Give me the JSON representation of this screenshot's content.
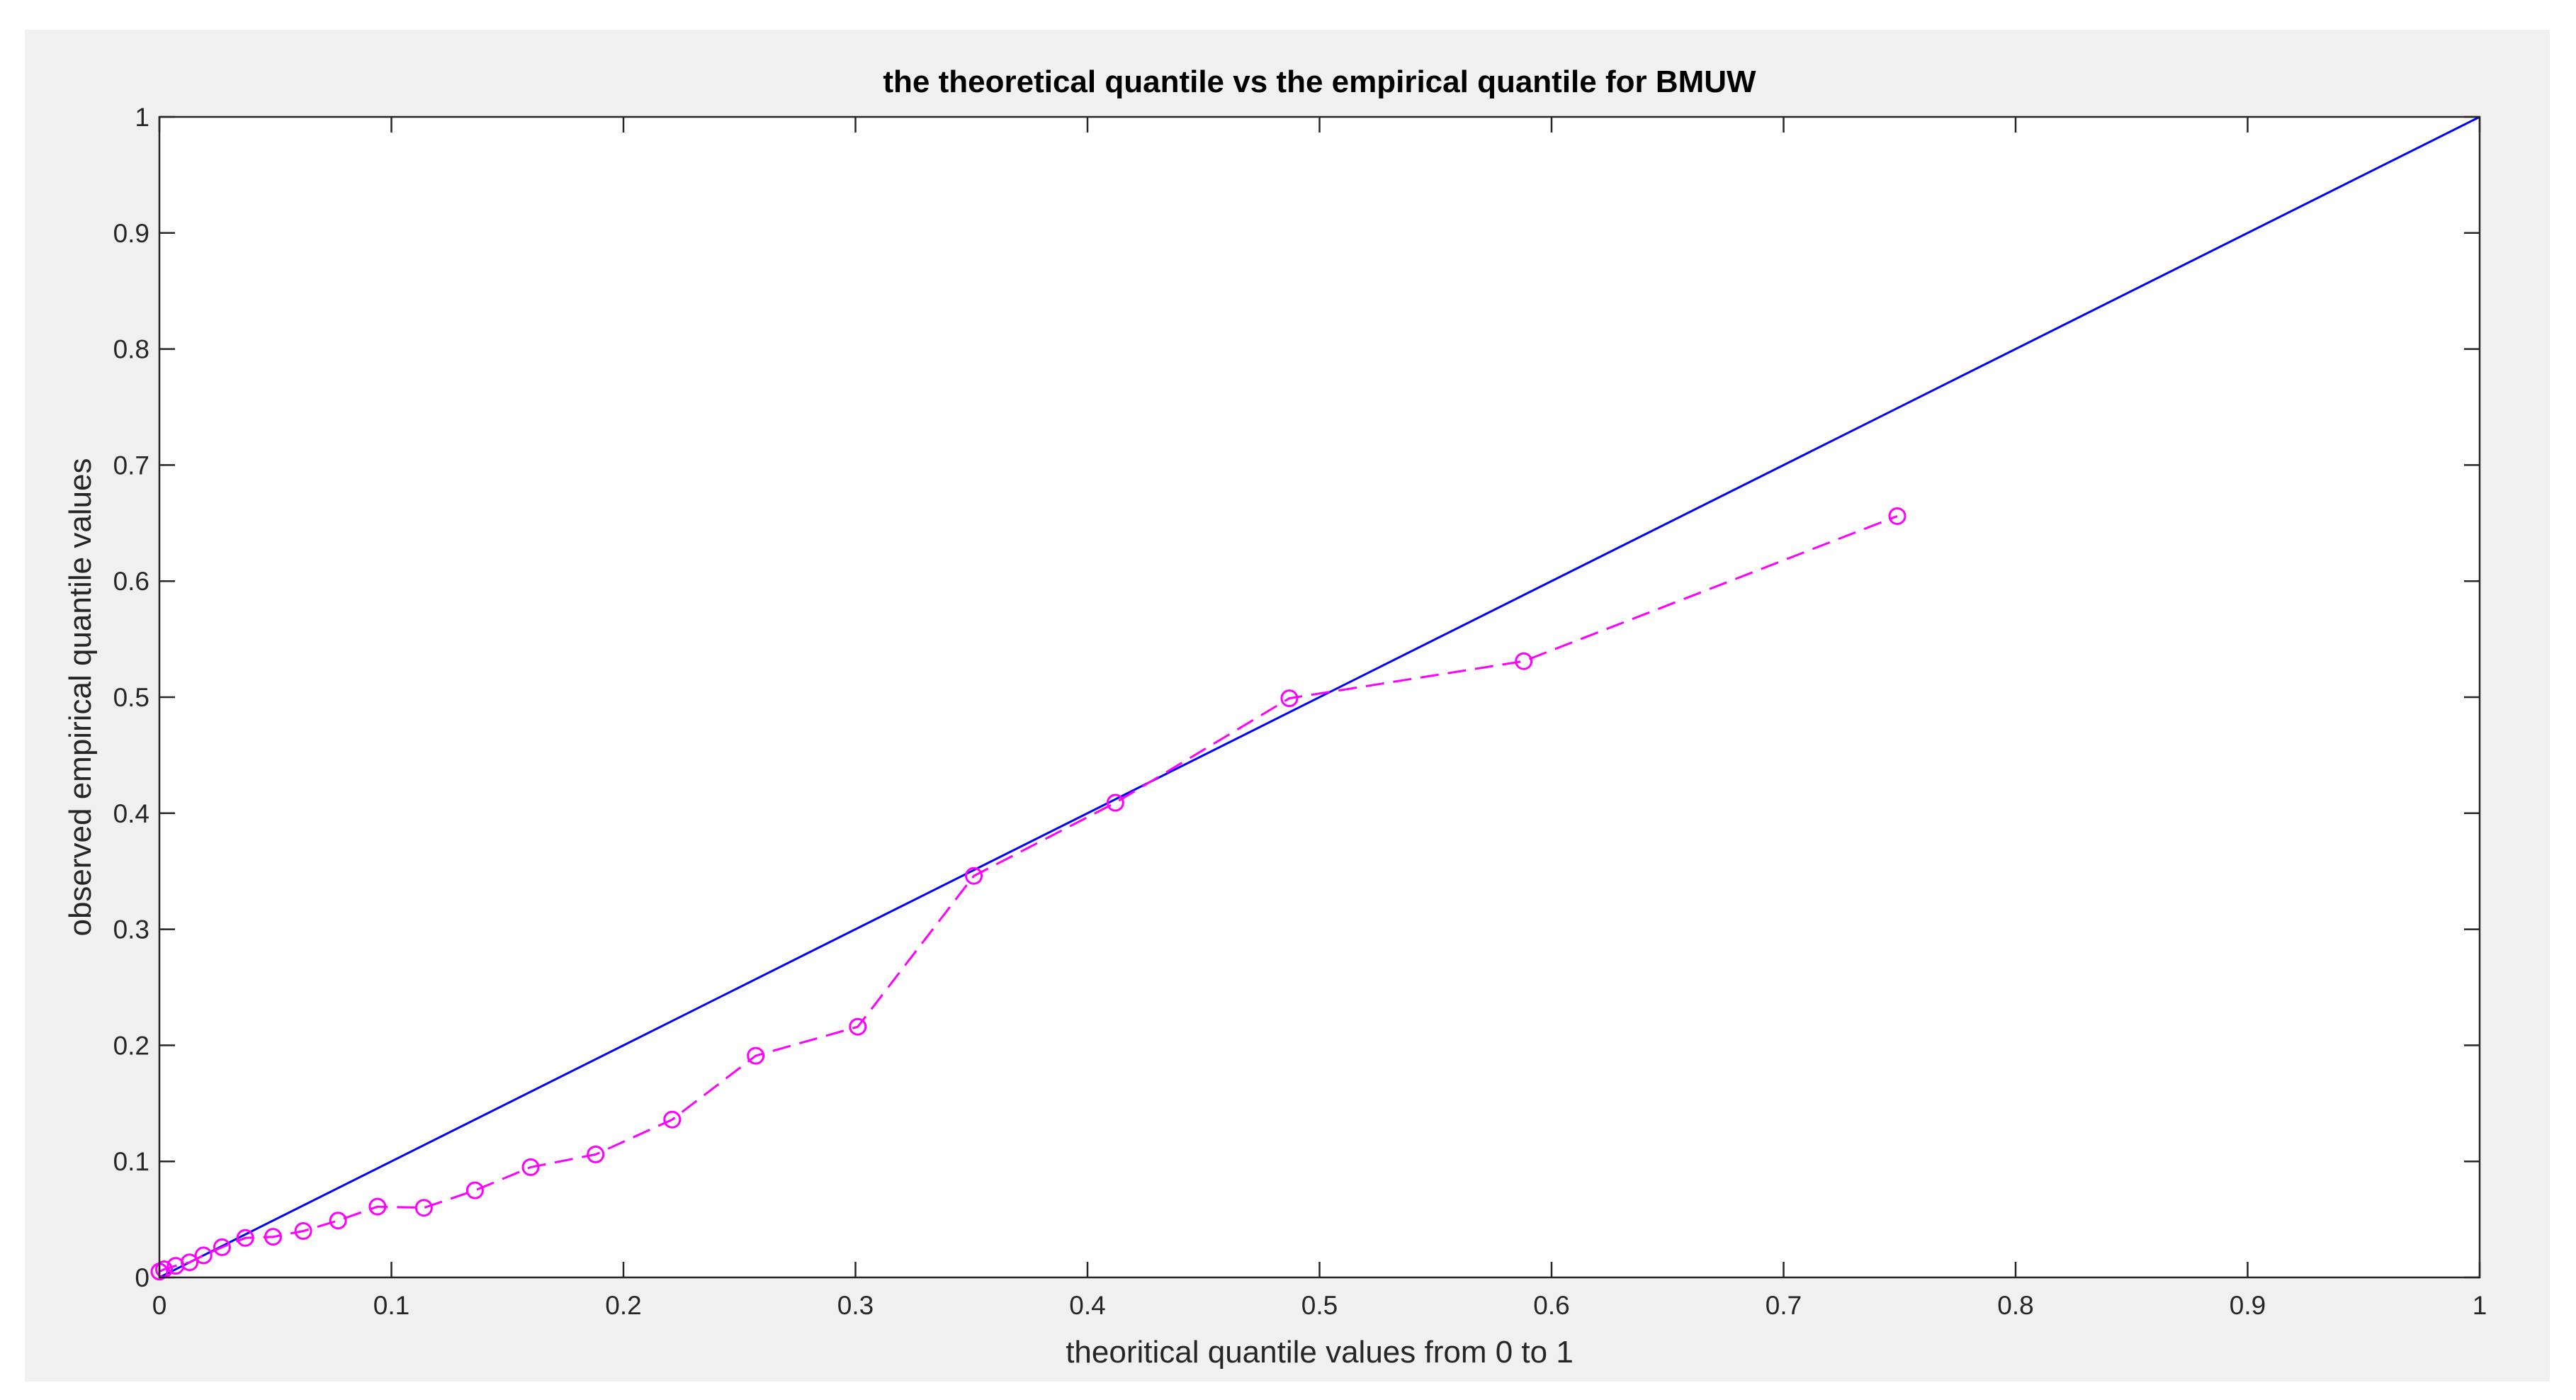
{
  "chart_data": {
    "type": "line",
    "title": "the theoretical quantile vs the empirical quantile for BMUW",
    "xlabel": "theoritical quantile values from 0 to 1",
    "ylabel": "observed empirical quantile  values",
    "xlim": [
      0,
      1
    ],
    "ylim": [
      0,
      1
    ],
    "x_ticks": [
      "0",
      "0.1",
      "0.2",
      "0.3",
      "0.4",
      "0.5",
      "0.6",
      "0.7",
      "0.8",
      "0.9",
      "1"
    ],
    "y_ticks": [
      "0",
      "0.1",
      "0.2",
      "0.3",
      "0.4",
      "0.5",
      "0.6",
      "0.7",
      "0.8",
      "0.9",
      "1"
    ],
    "grid": false,
    "legend": "none",
    "series": [
      {
        "style": "solid",
        "color": "#0000ff",
        "marker": "none",
        "x": [
          0,
          1
        ],
        "y": [
          0,
          1
        ]
      },
      {
        "style": "dashed",
        "color": "#ff00ff",
        "marker": "circle",
        "x": [
          0.0,
          0.002,
          0.007,
          0.013,
          0.019,
          0.027,
          0.037,
          0.049,
          0.062,
          0.077,
          0.094,
          0.114,
          0.136,
          0.16,
          0.188,
          0.221,
          0.257,
          0.301,
          0.351,
          0.412,
          0.487,
          0.588,
          0.749
        ],
        "y": [
          0.005,
          0.007,
          0.01,
          0.013,
          0.019,
          0.026,
          0.034,
          0.035,
          0.04,
          0.049,
          0.061,
          0.06,
          0.075,
          0.095,
          0.106,
          0.136,
          0.191,
          0.216,
          0.346,
          0.409,
          0.499,
          0.531,
          0.656
        ]
      }
    ]
  }
}
